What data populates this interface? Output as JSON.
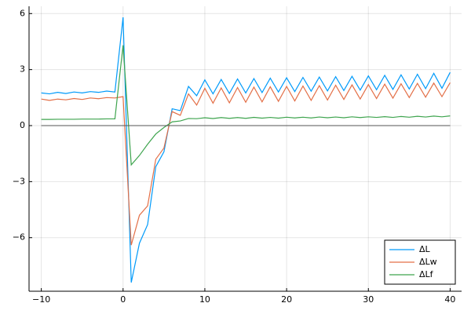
{
  "chart_data": {
    "type": "line",
    "x": [
      -10,
      -9,
      -8,
      -7,
      -6,
      -5,
      -4,
      -3,
      -2,
      -1,
      0,
      1,
      2,
      3,
      4,
      5,
      6,
      7,
      8,
      9,
      10,
      11,
      12,
      13,
      14,
      15,
      16,
      17,
      18,
      19,
      20,
      21,
      22,
      23,
      24,
      25,
      26,
      27,
      28,
      29,
      30,
      31,
      32,
      33,
      34,
      35,
      36,
      37,
      38,
      39,
      40
    ],
    "series": [
      {
        "name": "ΔL",
        "color": "#009afa",
        "values": [
          1.75,
          1.7,
          1.78,
          1.72,
          1.8,
          1.75,
          1.82,
          1.78,
          1.85,
          1.8,
          5.8,
          -8.4,
          -6.3,
          -5.3,
          -2.2,
          -1.4,
          0.9,
          0.8,
          2.1,
          1.6,
          2.45,
          1.7,
          2.47,
          1.72,
          2.5,
          1.75,
          2.52,
          1.77,
          2.54,
          1.8,
          2.56,
          1.82,
          2.58,
          1.84,
          2.6,
          1.86,
          2.62,
          1.88,
          2.64,
          1.9,
          2.66,
          1.92,
          2.69,
          1.94,
          2.72,
          1.96,
          2.75,
          1.98,
          2.8,
          2.0,
          2.85
        ]
      },
      {
        "name": "ΔLw",
        "color": "#e36f47",
        "values": [
          1.42,
          1.35,
          1.42,
          1.38,
          1.45,
          1.4,
          1.48,
          1.44,
          1.5,
          1.48,
          1.55,
          -6.4,
          -4.8,
          -4.3,
          -1.8,
          -1.2,
          0.75,
          0.55,
          1.7,
          1.1,
          2.0,
          1.2,
          2.02,
          1.22,
          2.04,
          1.25,
          2.06,
          1.27,
          2.08,
          1.3,
          2.1,
          1.32,
          2.12,
          1.35,
          2.14,
          1.37,
          2.16,
          1.4,
          2.18,
          1.42,
          2.2,
          1.45,
          2.22,
          1.47,
          2.24,
          1.5,
          2.26,
          1.52,
          2.28,
          1.55,
          2.3
        ]
      },
      {
        "name": "ΔLf",
        "color": "#3ea44e",
        "values": [
          0.33,
          0.33,
          0.34,
          0.34,
          0.34,
          0.35,
          0.35,
          0.35,
          0.36,
          0.36,
          4.3,
          -2.1,
          -1.6,
          -1.0,
          -0.45,
          -0.1,
          0.2,
          0.25,
          0.38,
          0.37,
          0.42,
          0.38,
          0.43,
          0.39,
          0.43,
          0.39,
          0.44,
          0.4,
          0.44,
          0.4,
          0.45,
          0.41,
          0.45,
          0.41,
          0.46,
          0.42,
          0.46,
          0.42,
          0.47,
          0.43,
          0.47,
          0.44,
          0.48,
          0.44,
          0.49,
          0.45,
          0.5,
          0.46,
          0.51,
          0.47,
          0.52
        ]
      }
    ],
    "hline": 0,
    "hline_color": "#555555",
    "xlim": [
      -11.5,
      41.4
    ],
    "ylim": [
      -8.87,
      6.39
    ],
    "xticks": [
      {
        "value": -10,
        "label": "−10"
      },
      0,
      10,
      20,
      30,
      40
    ],
    "yticks": [
      {
        "value": -6,
        "label": "−6"
      },
      {
        "value": -3,
        "label": "−3"
      },
      0,
      3,
      6
    ],
    "grid": true,
    "legend": "bottom-right"
  }
}
